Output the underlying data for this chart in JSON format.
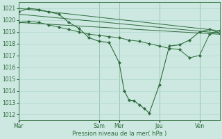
{
  "bg_color": "#cce8e0",
  "grid_color": "#b0d8d0",
  "line_color": "#2d6b3c",
  "vline_color": "#2d6b3c",
  "xlabel": "Pression niveau de la mer( hPa )",
  "ylim": [
    1011.5,
    1021.5
  ],
  "yticks": [
    1012,
    1013,
    1014,
    1015,
    1016,
    1017,
    1018,
    1019,
    1020,
    1021
  ],
  "xlim": [
    0,
    120
  ],
  "day_ticks": [
    0,
    48,
    60,
    84,
    108
  ],
  "day_labels": [
    "Mar",
    "Sam",
    "Mer",
    "Jeu",
    "Ven"
  ],
  "straight1": {
    "x": [
      0,
      120
    ],
    "y": [
      1021.0,
      1019.1
    ]
  },
  "straight2": {
    "x": [
      0,
      120
    ],
    "y": [
      1020.5,
      1018.9
    ]
  },
  "straight3": {
    "x": [
      0,
      120
    ],
    "y": [
      1019.8,
      1018.8
    ]
  },
  "main_x": [
    0,
    6,
    12,
    18,
    24,
    30,
    36,
    42,
    48,
    54,
    60,
    63,
    66,
    69,
    72,
    75,
    78,
    84,
    90,
    96,
    102,
    108,
    114,
    120
  ],
  "main_y": [
    1020.7,
    1021.0,
    1020.9,
    1020.7,
    1020.5,
    1019.8,
    1019.3,
    1018.5,
    1018.2,
    1018.1,
    1016.4,
    1014.0,
    1013.2,
    1013.15,
    1012.8,
    1012.5,
    1012.1,
    1014.5,
    1017.8,
    1017.9,
    1018.3,
    1019.0,
    1019.2,
    1018.9
  ],
  "second_x": [
    0,
    6,
    12,
    18,
    24,
    30,
    36,
    42,
    48,
    54,
    60,
    66,
    72,
    78,
    84,
    90,
    96,
    102,
    108,
    114,
    120
  ],
  "second_y": [
    1019.8,
    1019.9,
    1019.8,
    1019.6,
    1019.4,
    1019.2,
    1019.0,
    1018.8,
    1018.7,
    1018.6,
    1018.5,
    1018.3,
    1018.2,
    1018.0,
    1017.8,
    1017.6,
    1017.5,
    1016.8,
    1017.0,
    1018.8,
    1019.1
  ],
  "tick_fontsize": 5.5,
  "label_fontsize": 6.0
}
